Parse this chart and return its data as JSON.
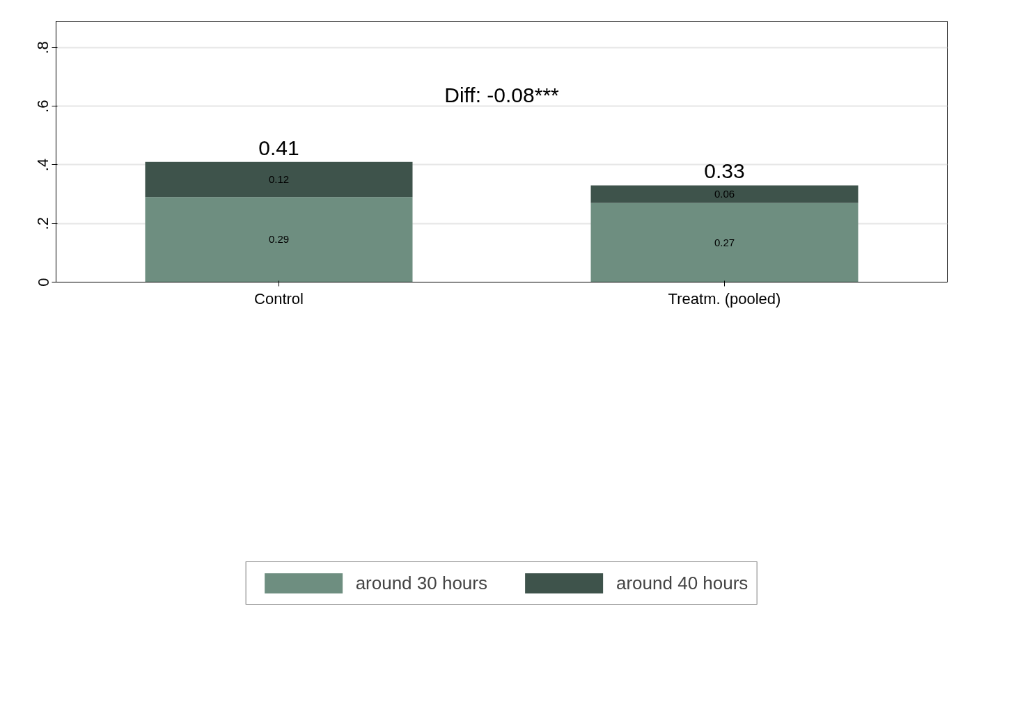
{
  "chart_data": {
    "type": "bar",
    "stacked": true,
    "categories": [
      "Control",
      "Treatm. (pooled)"
    ],
    "series": [
      {
        "name": "around 30 hours",
        "color": "#6e8e80",
        "values": [
          0.29,
          0.27
        ]
      },
      {
        "name": "around 40 hours",
        "color": "#3e534b",
        "values": [
          0.12,
          0.06
        ]
      }
    ],
    "ylim": [
      0,
      0.89
    ],
    "yticks": [
      {
        "value": 0,
        "label": "0"
      },
      {
        "value": 0.2,
        "label": ".2"
      },
      {
        "value": 0.4,
        "label": ".4"
      },
      {
        "value": 0.6,
        "label": ".6"
      },
      {
        "value": 0.8,
        "label": ".8"
      }
    ],
    "data_labels": true,
    "totals": [
      "0.41",
      "0.33"
    ],
    "annotations": [
      "Diff: -0.08***"
    ],
    "grid": "y",
    "legend": "bottom"
  }
}
